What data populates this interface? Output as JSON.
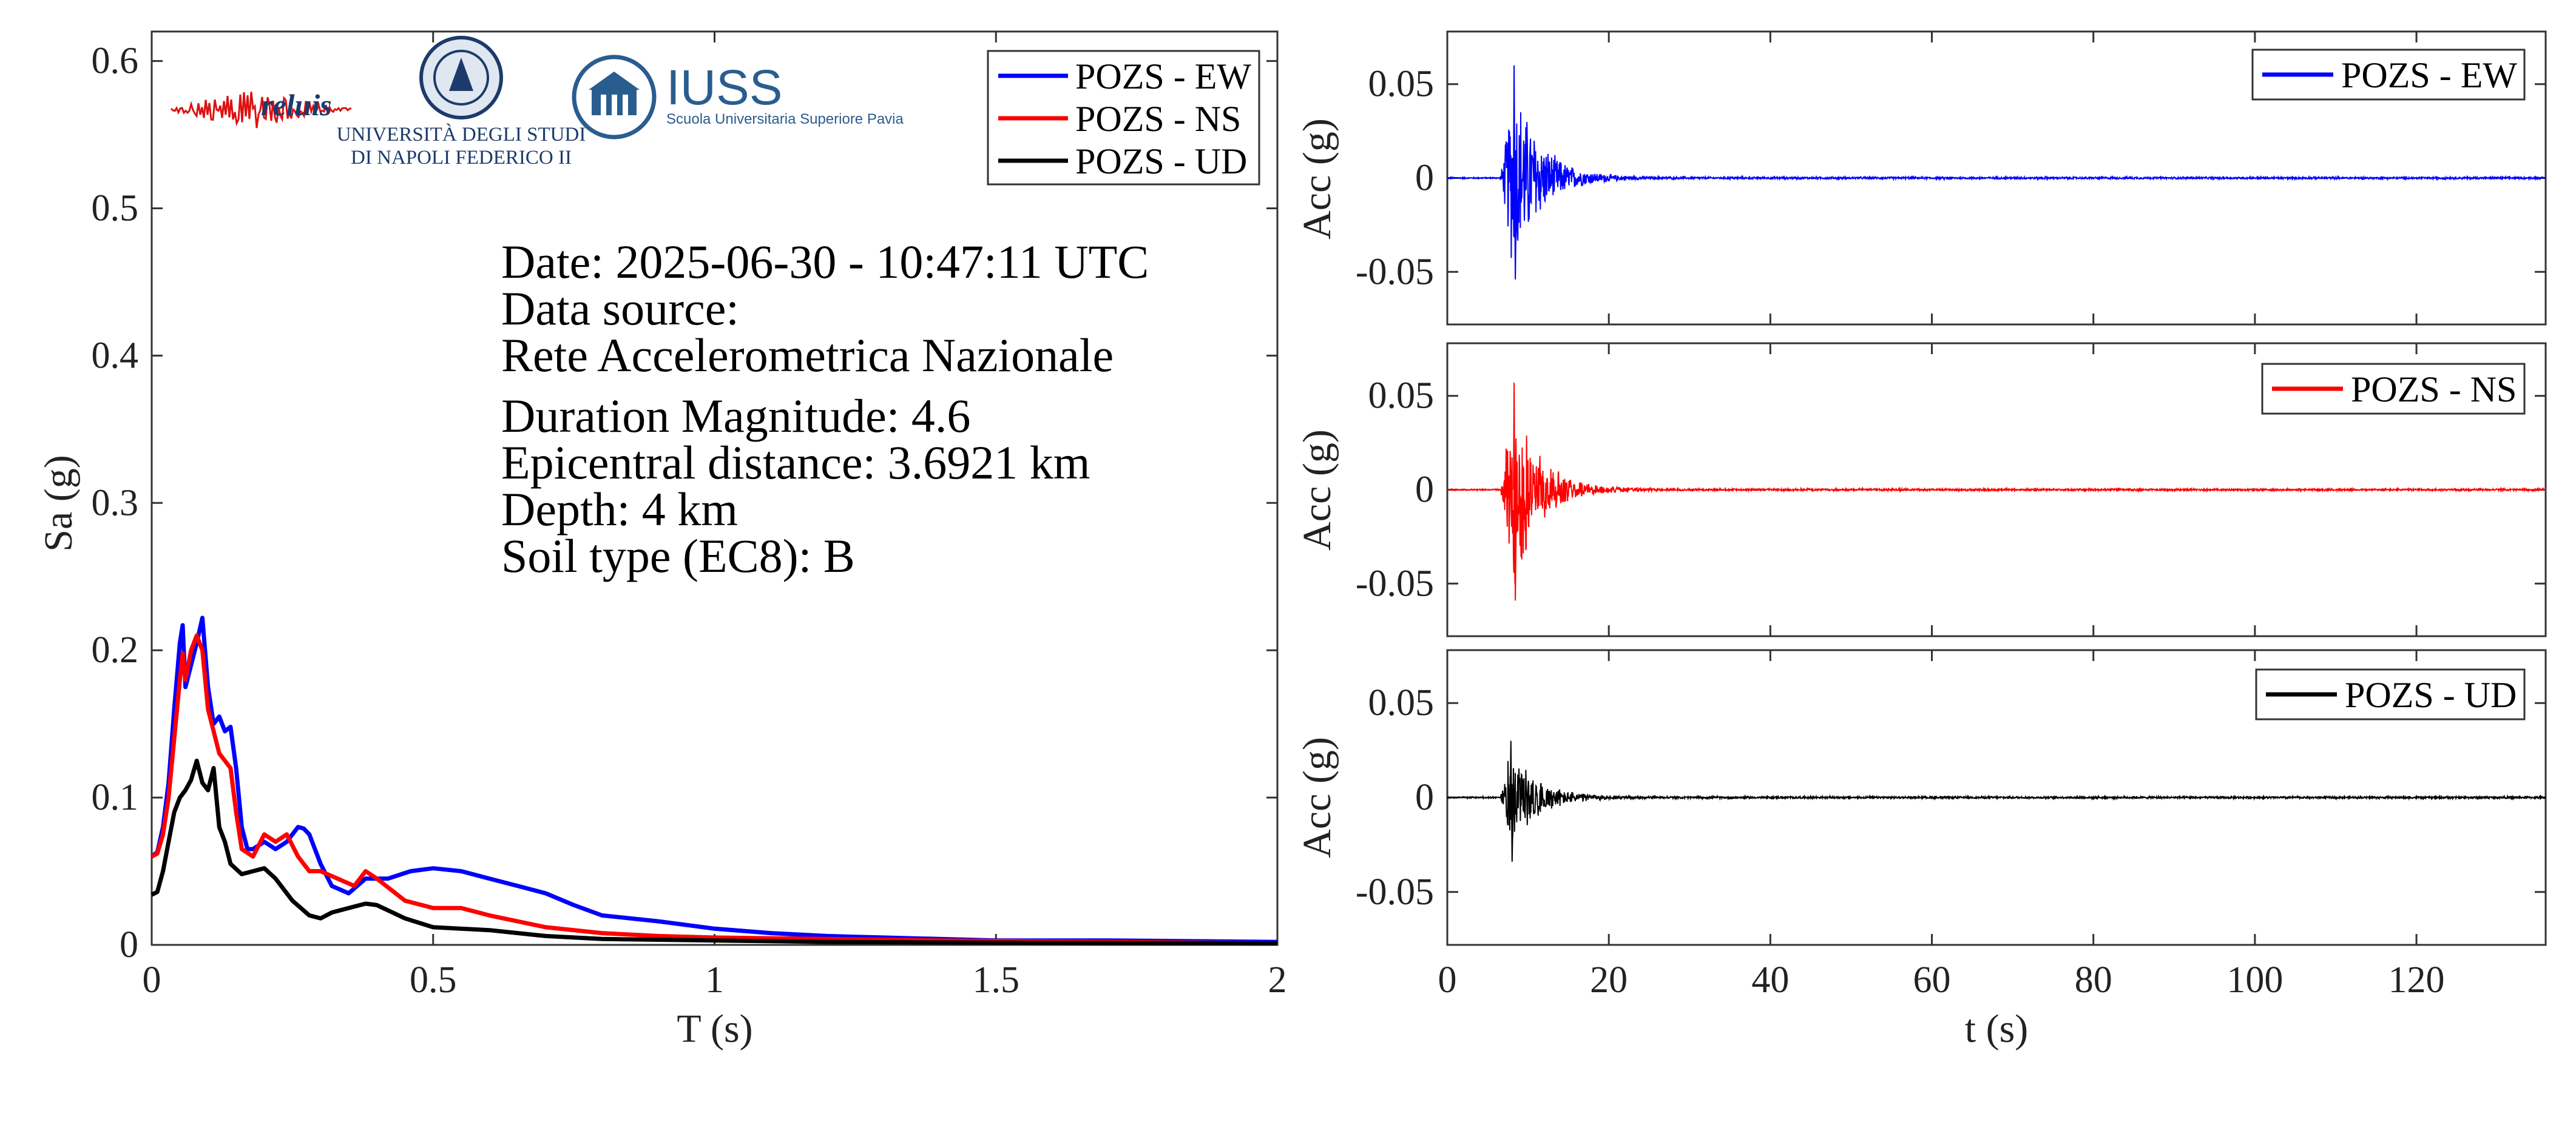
{
  "colors": {
    "ew": "#0000ff",
    "ns": "#ff0000",
    "ud": "#000000",
    "axis": "#333333"
  },
  "logos": {
    "reluis": "reluis",
    "unina_line1": "UNIVERSITÀ DEGLI STUDI",
    "unina_line2": "DI NAPOLI FEDERICO II",
    "iuss_title": "IUSS",
    "iuss_subtitle": "Scuola Universitaria Superiore Pavia"
  },
  "info": {
    "date": "Date: 2025-06-30 - 10:47:11 UTC",
    "source_label": "Data source:",
    "source_value": "Rete Accelerometrica Nazionale",
    "magnitude": "Duration Magnitude: 4.6",
    "distance": "Epicentral distance: 3.6921 km",
    "depth": "Depth: 4 km",
    "soil": "Soil type (EC8): B"
  },
  "chart_data": [
    {
      "type": "line",
      "id": "spectrum",
      "xlabel": "T (s)",
      "ylabel": "Sa (g)",
      "xlim": [
        0,
        2
      ],
      "ylim": [
        0,
        0.62
      ],
      "xticks": [
        0,
        0.5,
        1,
        1.5,
        2
      ],
      "xtick_labels": [
        "0",
        "0.5",
        "1",
        "1.5",
        "2"
      ],
      "yticks": [
        0,
        0.1,
        0.2,
        0.3,
        0.4,
        0.5,
        0.6
      ],
      "ytick_labels": [
        "0",
        "0.1",
        "0.2",
        "0.3",
        "0.4",
        "0.5",
        "0.6"
      ],
      "legend_position": "top-right",
      "series": [
        {
          "name": "POZS - EW",
          "color": "#0000ff",
          "x": [
            0,
            0.01,
            0.02,
            0.03,
            0.04,
            0.05,
            0.055,
            0.06,
            0.07,
            0.08,
            0.09,
            0.1,
            0.11,
            0.12,
            0.13,
            0.14,
            0.15,
            0.16,
            0.17,
            0.18,
            0.2,
            0.22,
            0.24,
            0.26,
            0.27,
            0.28,
            0.3,
            0.32,
            0.35,
            0.38,
            0.42,
            0.46,
            0.5,
            0.55,
            0.6,
            0.65,
            0.7,
            0.75,
            0.8,
            0.9,
            1.0,
            1.1,
            1.2,
            1.3,
            1.4,
            1.5,
            1.7,
            2.0
          ],
          "y": [
            0.06,
            0.063,
            0.08,
            0.11,
            0.16,
            0.205,
            0.217,
            0.175,
            0.19,
            0.205,
            0.222,
            0.175,
            0.15,
            0.155,
            0.145,
            0.148,
            0.12,
            0.08,
            0.065,
            0.065,
            0.07,
            0.065,
            0.07,
            0.08,
            0.079,
            0.075,
            0.055,
            0.04,
            0.035,
            0.045,
            0.045,
            0.05,
            0.052,
            0.05,
            0.045,
            0.04,
            0.035,
            0.027,
            0.02,
            0.016,
            0.011,
            0.008,
            0.006,
            0.005,
            0.004,
            0.003,
            0.003,
            0.002
          ]
        },
        {
          "name": "POZS - NS",
          "color": "#ff0000",
          "x": [
            0,
            0.01,
            0.02,
            0.03,
            0.04,
            0.05,
            0.055,
            0.06,
            0.07,
            0.08,
            0.09,
            0.1,
            0.12,
            0.14,
            0.15,
            0.16,
            0.18,
            0.2,
            0.22,
            0.24,
            0.26,
            0.28,
            0.3,
            0.33,
            0.36,
            0.38,
            0.4,
            0.45,
            0.5,
            0.55,
            0.6,
            0.7,
            0.8,
            0.9,
            1.0,
            1.2,
            1.4,
            1.7,
            2.0
          ],
          "y": [
            0.06,
            0.062,
            0.075,
            0.1,
            0.14,
            0.18,
            0.198,
            0.18,
            0.2,
            0.21,
            0.2,
            0.16,
            0.13,
            0.12,
            0.09,
            0.065,
            0.06,
            0.075,
            0.07,
            0.075,
            0.06,
            0.05,
            0.05,
            0.045,
            0.04,
            0.05,
            0.045,
            0.03,
            0.025,
            0.025,
            0.02,
            0.012,
            0.008,
            0.006,
            0.005,
            0.004,
            0.003,
            0.002,
            0.001
          ]
        },
        {
          "name": "POZS - UD",
          "color": "#000000",
          "x": [
            0,
            0.01,
            0.02,
            0.03,
            0.04,
            0.05,
            0.06,
            0.07,
            0.08,
            0.09,
            0.1,
            0.11,
            0.12,
            0.13,
            0.14,
            0.16,
            0.18,
            0.2,
            0.22,
            0.25,
            0.28,
            0.3,
            0.32,
            0.35,
            0.38,
            0.4,
            0.45,
            0.5,
            0.6,
            0.7,
            0.8,
            1.0,
            1.2,
            1.5,
            2.0
          ],
          "y": [
            0.034,
            0.036,
            0.05,
            0.07,
            0.09,
            0.1,
            0.105,
            0.112,
            0.125,
            0.11,
            0.105,
            0.12,
            0.08,
            0.07,
            0.055,
            0.048,
            0.05,
            0.052,
            0.045,
            0.03,
            0.02,
            0.018,
            0.022,
            0.025,
            0.028,
            0.027,
            0.018,
            0.012,
            0.01,
            0.006,
            0.004,
            0.003,
            0.002,
            0.0015,
            0.001
          ]
        }
      ]
    },
    {
      "type": "line",
      "id": "acc_ew",
      "ylabel": "Acc (g)",
      "xlim": [
        0,
        136
      ],
      "ylim": [
        -0.078,
        0.078
      ],
      "yticks": [
        -0.05,
        0,
        0.05
      ],
      "ytick_labels": [
        "-0.05",
        "0",
        "0.05"
      ],
      "legend_position": "top-right",
      "series": [
        {
          "name": "POZS - EW",
          "color": "#0000ff",
          "peak_pos": 0.06,
          "peak_neg": -0.054,
          "onset_s": 6.5,
          "peak_time_s": 8.2,
          "decay_end_s": 30
        }
      ]
    },
    {
      "type": "line",
      "id": "acc_ns",
      "ylabel": "Acc (g)",
      "xlim": [
        0,
        136
      ],
      "ylim": [
        -0.078,
        0.078
      ],
      "yticks": [
        -0.05,
        0,
        0.05
      ],
      "ytick_labels": [
        "-0.05",
        "0",
        "0.05"
      ],
      "legend_position": "top-right",
      "series": [
        {
          "name": "POZS - NS",
          "color": "#ff0000",
          "peak_pos": 0.057,
          "peak_neg": -0.059,
          "onset_s": 6.5,
          "peak_time_s": 8.2,
          "decay_end_s": 30
        }
      ]
    },
    {
      "type": "line",
      "id": "acc_ud",
      "xlabel": "t (s)",
      "ylabel": "Acc (g)",
      "xlim": [
        0,
        136
      ],
      "ylim": [
        -0.078,
        0.078
      ],
      "xticks": [
        0,
        20,
        40,
        60,
        80,
        100,
        120
      ],
      "xtick_labels": [
        "0",
        "20",
        "40",
        "60",
        "80",
        "100",
        "120"
      ],
      "yticks": [
        -0.05,
        0,
        0.05
      ],
      "ytick_labels": [
        "-0.05",
        "0",
        "0.05"
      ],
      "legend_position": "top-right",
      "series": [
        {
          "name": "POZS - UD",
          "color": "#000000",
          "peak_pos": 0.03,
          "peak_neg": -0.034,
          "onset_s": 6.5,
          "peak_time_s": 7.8,
          "decay_end_s": 28
        }
      ]
    }
  ]
}
